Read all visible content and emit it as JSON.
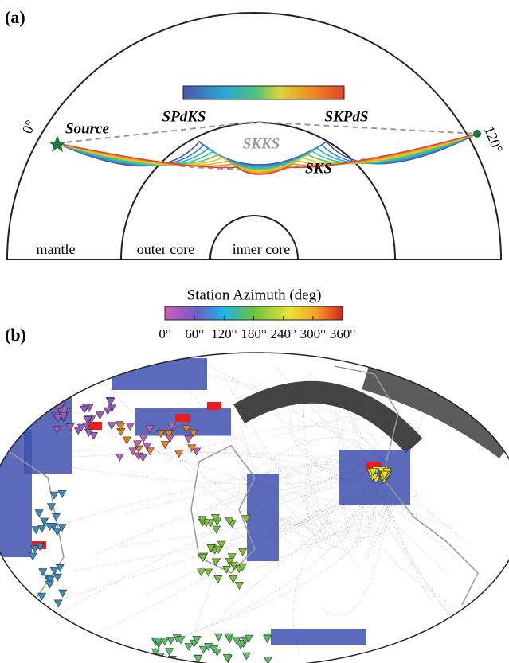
{
  "panel_a": {
    "label": "(a)",
    "left_angle": "0°",
    "right_angle": "120°",
    "source": "Source",
    "phases": {
      "spdks": "SPdKS",
      "skpds": "SKPdS",
      "skks": "SKKS",
      "sks": "SKS"
    },
    "regions": {
      "mantle": "mantle",
      "outer_core": "outer core",
      "inner_core": "inner core"
    }
  },
  "panel_b": {
    "label": "(b)",
    "colorbar_title": "Station Azimuth (deg)",
    "colorbar_ticks": [
      "0°",
      "60°",
      "120°",
      "180°",
      "240°",
      "300°",
      "360°"
    ]
  }
}
